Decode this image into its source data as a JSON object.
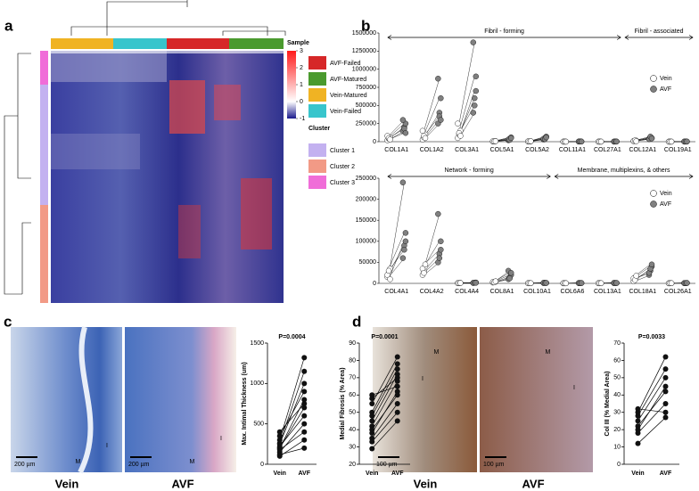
{
  "panel_labels": [
    "a",
    "b",
    "c",
    "d"
  ],
  "heatmap": {
    "sample_title": "Sample",
    "samples": [
      {
        "name": "AVF-Failed",
        "color": "#d62728"
      },
      {
        "name": "AVF-Matured",
        "color": "#4a9a2e"
      },
      {
        "name": "Vein-Matured",
        "color": "#f0b323"
      },
      {
        "name": "Vein-Failed",
        "color": "#38c5cc"
      }
    ],
    "cluster_title": "Cluster",
    "clusters": [
      {
        "name": "Cluster 1",
        "color": "#c3b1f0"
      },
      {
        "name": "Cluster 2",
        "color": "#f29a86"
      },
      {
        "name": "Cluster 3",
        "color": "#f06dd8"
      }
    ],
    "clim": [
      -1,
      3
    ],
    "colorbar_ticks": [
      3,
      2,
      1,
      0,
      -1
    ]
  },
  "images": {
    "c_left": {
      "label": "Vein",
      "marks": [
        "M",
        "I"
      ],
      "scale": "200 µm"
    },
    "c_right": {
      "label": "AVF",
      "marks": [
        "M",
        "I"
      ],
      "scale": "200 µm"
    },
    "d_left": {
      "label": "Vein",
      "marks": [
        "M",
        "I"
      ],
      "scale": "100 µm"
    },
    "d_right": {
      "label": "AVF",
      "marks": [
        "M",
        "I"
      ],
      "scale": "100 µm"
    }
  },
  "chart_data": [
    {
      "type": "gene-pairs",
      "annotations": [
        "Fibril - forming",
        "Fibril - associated"
      ],
      "categories": [
        "COL1A1",
        "COL1A2",
        "COL3A1",
        "COL5A1",
        "COL5A2",
        "COL11A1",
        "COL27A1",
        "COL12A1",
        "COL19A1"
      ],
      "series": [
        {
          "name": "Vein",
          "color": "#ffffff",
          "values": [
            [
              20000,
              40000,
              60000,
              80000,
              50000,
              30000
            ],
            [
              30000,
              60000,
              100000,
              150000,
              80000,
              50000
            ],
            [
              50000,
              100000,
              150000,
              250000,
              120000,
              80000
            ],
            [
              3000,
              5000,
              8000,
              6000,
              4000,
              7000
            ],
            [
              2000,
              4000,
              6000,
              5000,
              3000,
              7000
            ],
            [
              500,
              800,
              600,
              700,
              900,
              400
            ],
            [
              500,
              700,
              600,
              800,
              400,
              900
            ],
            [
              8000,
              12000,
              15000,
              10000,
              18000,
              6000
            ],
            [
              400,
              600,
              500,
              700,
              300,
              800
            ]
          ]
        },
        {
          "name": "AVF",
          "color": "#808080",
          "values": [
            [
              150000,
              200000,
              250000,
              300000,
              180000,
              120000
            ],
            [
              250000,
              400000,
              600000,
              870000,
              350000,
              300000
            ],
            [
              400000,
              600000,
              900000,
              1370000,
              500000,
              700000
            ],
            [
              20000,
              40000,
              60000,
              30000,
              25000,
              50000
            ],
            [
              30000,
              50000,
              70000,
              40000,
              35000,
              60000
            ],
            [
              1500,
              2500,
              2000,
              3000,
              1800,
              2200
            ],
            [
              1000,
              1500,
              2000,
              1200,
              1800,
              1400
            ],
            [
              40000,
              60000,
              50000,
              35000,
              70000,
              45000
            ],
            [
              1000,
              1500,
              1200,
              1800,
              900,
              2000
            ]
          ]
        }
      ],
      "ylim": [
        0,
        1500000
      ],
      "yticks": [
        0,
        250000,
        500000,
        750000,
        1000000,
        1250000,
        1500000
      ]
    },
    {
      "type": "gene-pairs",
      "annotations": [
        "Network - forming",
        "Membrane, multiplexins, & others"
      ],
      "categories": [
        "COL4A1",
        "COL4A2",
        "COL4A4",
        "COL8A1",
        "COL10A1",
        "COL6A6",
        "COL13A1",
        "COL18A1",
        "COL26A1"
      ],
      "series": [
        {
          "name": "Vein",
          "color": "#ffffff",
          "values": [
            [
              15000,
              25000,
              35000,
              20000,
              30000,
              10000
            ],
            [
              20000,
              30000,
              40000,
              35000,
              25000,
              45000
            ],
            [
              500,
              800,
              1000,
              600,
              700,
              900
            ],
            [
              2000,
              3000,
              4000,
              3500,
              2500,
              5000
            ],
            [
              300,
              500,
              400,
              600,
              350,
              450
            ],
            [
              200,
              400,
              300,
              500,
              250,
              350
            ],
            [
              300,
              500,
              400,
              600,
              350,
              450
            ],
            [
              5000,
              10000,
              15000,
              12000,
              8000,
              18000
            ],
            [
              200,
              300,
              400,
              250,
              350,
              450
            ]
          ]
        },
        {
          "name": "AVF",
          "color": "#808080",
          "values": [
            [
              60000,
              90000,
              120000,
              240000,
              80000,
              100000
            ],
            [
              50000,
              70000,
              100000,
              165000,
              60000,
              80000
            ],
            [
              1000,
              1500,
              2000,
              1200,
              1800,
              1400
            ],
            [
              10000,
              15000,
              20000,
              30000,
              12000,
              25000
            ],
            [
              800,
              1200,
              1000,
              1500,
              900,
              1100
            ],
            [
              600,
              900,
              800,
              1000,
              700,
              850
            ],
            [
              700,
              1000,
              900,
              1200,
              800,
              950
            ],
            [
              20000,
              30000,
              40000,
              25000,
              35000,
              45000
            ],
            [
              500,
              700,
              900,
              600,
              800,
              1000
            ]
          ]
        }
      ],
      "ylim": [
        0,
        250000
      ],
      "yticks": [
        0,
        50000,
        100000,
        150000,
        200000,
        250000
      ]
    },
    {
      "type": "paired",
      "title": "P=0.0004",
      "ylabel": "Max. Intimal Thickness (um)",
      "categories": [
        "Vein",
        "AVF"
      ],
      "values": [
        [
          150,
          200,
          250,
          300,
          100,
          200,
          350,
          400,
          180,
          220,
          260,
          120
        ],
        [
          500,
          700,
          1000,
          1320,
          300,
          800,
          900,
          750,
          400,
          600,
          1150,
          200
        ]
      ],
      "ylim": [
        0,
        1500
      ],
      "yticks": [
        0,
        500,
        1000,
        1500
      ]
    },
    {
      "type": "paired",
      "title": "P=0.0001",
      "ylabel": "Medial Fibrosis (% Area)",
      "categories": [
        "Vein",
        "AVF"
      ],
      "values": [
        [
          29,
          35,
          38,
          42,
          45,
          48,
          55,
          58,
          60,
          33,
          40,
          50
        ],
        [
          45,
          55,
          62,
          68,
          72,
          75,
          82,
          70,
          65,
          50,
          60,
          78
        ]
      ],
      "ylim": [
        20,
        90
      ],
      "yticks": [
        20,
        30,
        40,
        50,
        60,
        70,
        80,
        90
      ]
    },
    {
      "type": "paired",
      "title": "P=0.0033",
      "ylabel": "Col III (% Medial Area)",
      "categories": [
        "Vein",
        "AVF"
      ],
      "values": [
        [
          12,
          18,
          22,
          25,
          28,
          30,
          32,
          20
        ],
        [
          27,
          35,
          42,
          50,
          55,
          62,
          30,
          45
        ]
      ],
      "ylim": [
        0,
        70
      ],
      "yticks": [
        0,
        10,
        20,
        30,
        40,
        50,
        60,
        70
      ]
    }
  ]
}
